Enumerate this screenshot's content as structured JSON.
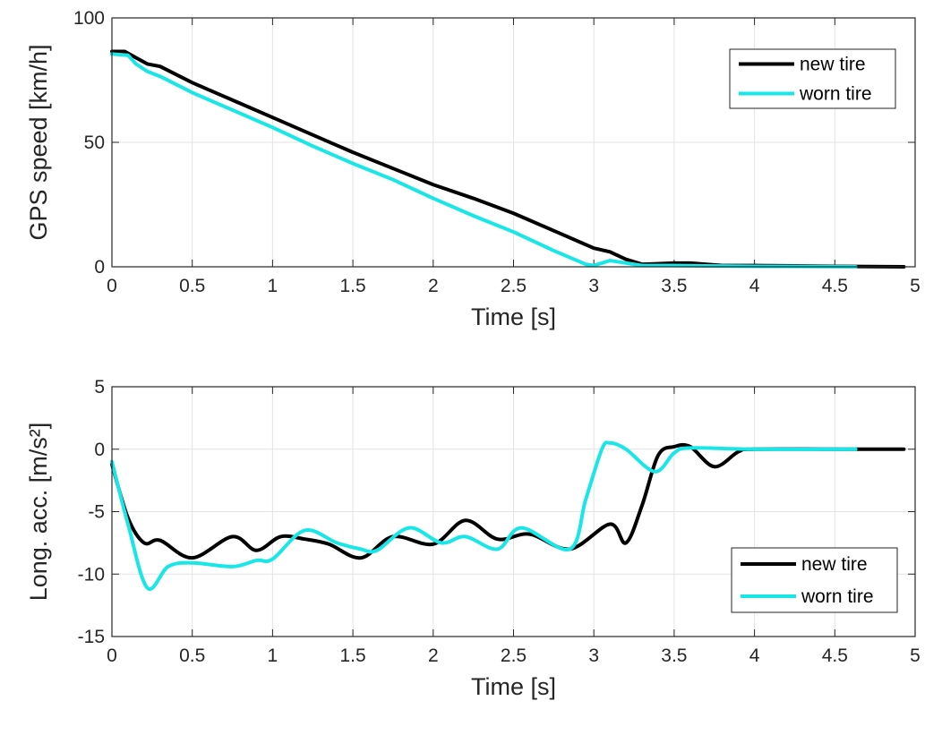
{
  "chart_data": [
    {
      "type": "line",
      "xlabel": "Time [s]",
      "ylabel": "GPS speed [km/h]",
      "xlim": [
        0,
        5
      ],
      "ylim": [
        0,
        100
      ],
      "xticks": [
        "0",
        "0.5",
        "1",
        "1.5",
        "2",
        "2.5",
        "3",
        "3.5",
        "4",
        "4.5",
        "5"
      ],
      "yticks": [
        "0",
        "50",
        "100"
      ],
      "grid": true,
      "legend_placement": "top-right",
      "series": [
        {
          "name": "new tire",
          "color": "#000000",
          "x": [
            0,
            0.08,
            0.15,
            0.22,
            0.3,
            0.5,
            0.75,
            1.0,
            1.25,
            1.5,
            1.75,
            2.0,
            2.25,
            2.5,
            2.75,
            3.0,
            3.1,
            3.2,
            3.3,
            3.5,
            3.6,
            3.8,
            4.0,
            4.5,
            4.93
          ],
          "y": [
            86.5,
            86.5,
            84,
            81.5,
            80.5,
            74,
            67,
            60,
            53,
            46,
            39.5,
            33,
            27.5,
            21.5,
            14.5,
            7.5,
            6,
            3,
            1,
            1.5,
            1.5,
            0.5,
            0.5,
            0.2,
            0
          ]
        },
        {
          "name": "worn tire",
          "color": "#19E6E6",
          "x": [
            0,
            0.1,
            0.15,
            0.22,
            0.3,
            0.5,
            0.75,
            1.0,
            1.25,
            1.5,
            1.75,
            2.0,
            2.25,
            2.5,
            2.75,
            2.95,
            3.0,
            3.1,
            3.2,
            3.3,
            3.5,
            4.0,
            4.63
          ],
          "y": [
            85.5,
            85,
            81.5,
            78.5,
            76.5,
            70,
            63,
            56,
            48.5,
            41.5,
            35,
            27.5,
            20.5,
            14,
            6.5,
            1,
            0.5,
            2.5,
            1.5,
            0.5,
            0.5,
            0.2,
            0
          ]
        }
      ]
    },
    {
      "type": "line",
      "xlabel": "Time [s]",
      "ylabel": "Long. acc. [m/s²]",
      "xlim": [
        0,
        5
      ],
      "ylim": [
        -15,
        5
      ],
      "xticks": [
        "0",
        "0.5",
        "1",
        "1.5",
        "2",
        "2.5",
        "3",
        "3.5",
        "4",
        "4.5",
        "5"
      ],
      "yticks": [
        "-15",
        "-10",
        "-5",
        "0",
        "5"
      ],
      "grid": true,
      "legend_placement": "bottom-right",
      "series": [
        {
          "name": "new tire",
          "color": "#000000",
          "x": [
            0,
            0.1,
            0.2,
            0.3,
            0.5,
            0.75,
            0.9,
            1.05,
            1.2,
            1.35,
            1.55,
            1.75,
            2.0,
            2.2,
            2.4,
            2.6,
            2.85,
            3.1,
            3.2,
            3.3,
            3.4,
            3.5,
            3.6,
            3.75,
            3.9,
            4.0,
            4.5,
            4.93
          ],
          "y": [
            -1.2,
            -5.5,
            -7.5,
            -7.3,
            -8.7,
            -7.0,
            -8.1,
            -7.0,
            -7.2,
            -7.6,
            -8.7,
            -7.0,
            -7.6,
            -5.7,
            -7.2,
            -6.8,
            -8.0,
            -6.0,
            -7.5,
            -4.5,
            -0.5,
            0.2,
            0.2,
            -1.4,
            -0.2,
            0,
            0,
            0
          ]
        },
        {
          "name": "worn tire",
          "color": "#19E6E6",
          "x": [
            0,
            0.1,
            0.22,
            0.35,
            0.5,
            0.75,
            0.9,
            1.0,
            1.2,
            1.4,
            1.55,
            1.65,
            1.85,
            2.05,
            2.2,
            2.4,
            2.55,
            2.85,
            2.95,
            3.05,
            3.1,
            3.2,
            3.38,
            3.5,
            3.6,
            4.0,
            4.63
          ],
          "y": [
            -1.0,
            -6.0,
            -11.1,
            -9.4,
            -9.1,
            -9.4,
            -8.9,
            -8.8,
            -6.5,
            -7.5,
            -8.0,
            -8.1,
            -6.3,
            -7.5,
            -7.0,
            -8.0,
            -6.3,
            -8.0,
            -4.0,
            0,
            0.5,
            0,
            -1.8,
            -0.3,
            0.1,
            0,
            0
          ]
        }
      ]
    }
  ]
}
